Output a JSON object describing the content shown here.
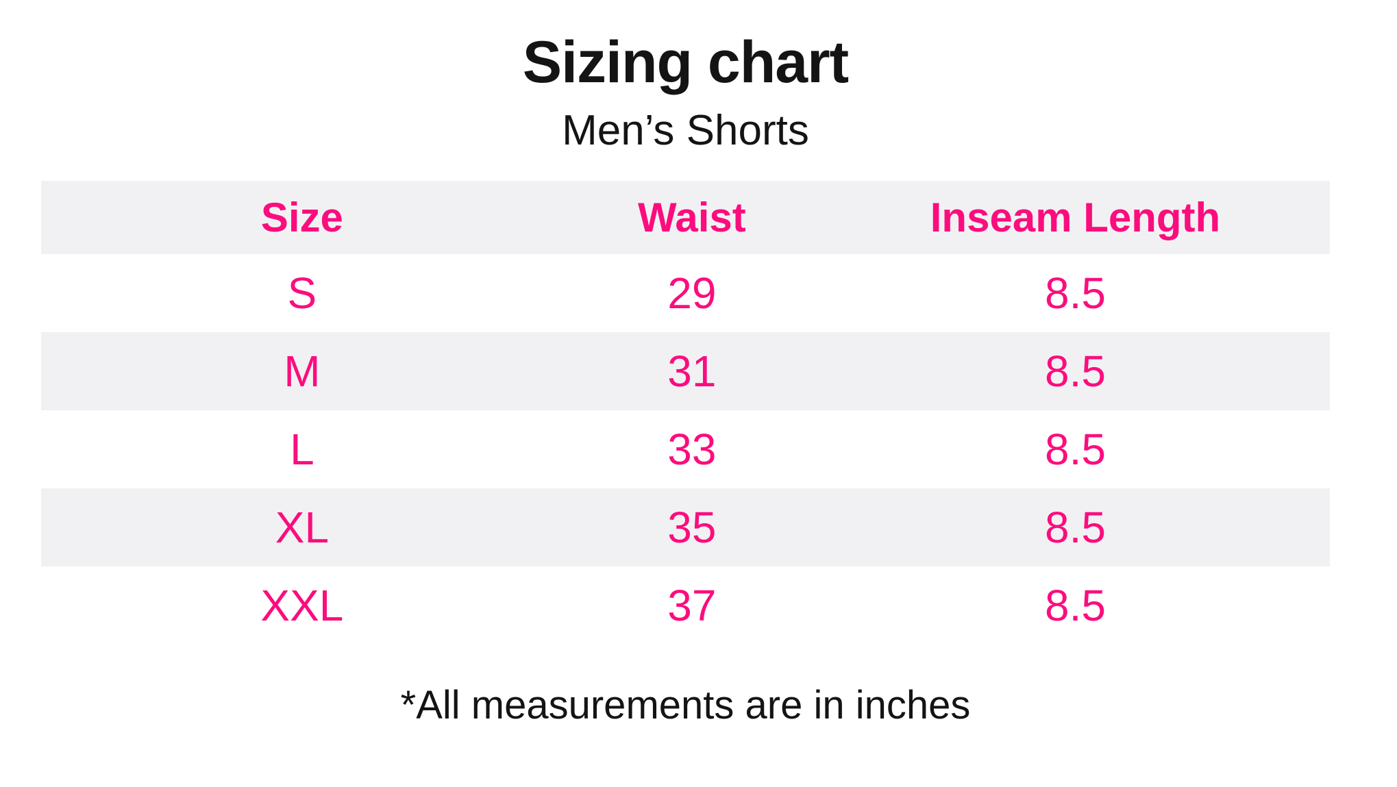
{
  "title": "Sizing chart",
  "subtitle": "Men’s Shorts",
  "footnote": "*All measurements are in inches",
  "colors": {
    "accent_pink": "#fb0d7e",
    "band_gray": "#f1f1f3",
    "text_black": "#141414",
    "background": "#ffffff"
  },
  "chart_data": {
    "type": "table",
    "title": "Sizing chart",
    "subtitle": "Men’s Shorts",
    "columns": [
      "Size",
      "Waist",
      "Inseam Length"
    ],
    "rows": [
      [
        "S",
        "29",
        "8.5"
      ],
      [
        "M",
        "31",
        "8.5"
      ],
      [
        "L",
        "33",
        "8.5"
      ],
      [
        "XL",
        "35",
        "8.5"
      ],
      [
        "XXL",
        "37",
        "8.5"
      ]
    ],
    "note": "*All measurements are in inches",
    "units": "inches",
    "layout_hints": {
      "header_background": "#f1f1f3",
      "alternating_rows": true,
      "text_alignment": "center"
    }
  }
}
